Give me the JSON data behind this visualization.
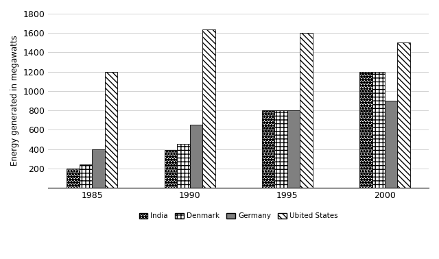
{
  "years": [
    1985,
    1990,
    1995,
    2000
  ],
  "countries": [
    "India",
    "Denmark",
    "Germany",
    "Ubited States"
  ],
  "values": {
    "India": [
      200,
      390,
      800,
      1200
    ],
    "Denmark": [
      240,
      450,
      800,
      1200
    ],
    "Germany": [
      400,
      650,
      800,
      900
    ],
    "Ubited States": [
      1200,
      1640,
      1600,
      1500
    ]
  },
  "hatches": [
    "****",
    "+++",
    "",
    "\\\\\\\\"
  ],
  "colors": [
    "white",
    "white",
    "gray",
    "white"
  ],
  "edgecolors": [
    "black",
    "black",
    "gray",
    "black"
  ],
  "ylabel": "Energy generated in megawatts",
  "ylim": [
    0,
    1800
  ],
  "yticks": [
    0,
    200,
    400,
    600,
    800,
    1000,
    1200,
    1400,
    1600,
    1800
  ],
  "bar_width": 0.13,
  "background_color": "#ffffff",
  "legend_symbols": [
    "*India",
    "r Denmark",
    "▪Germany",
    "\\Ubited States"
  ]
}
